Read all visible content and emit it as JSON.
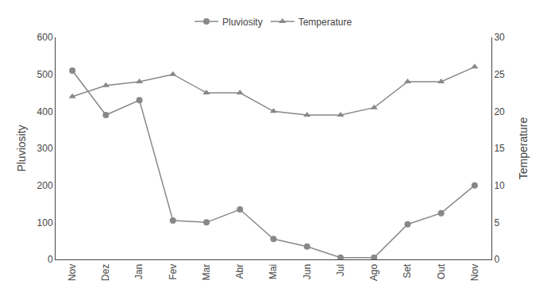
{
  "chart_data": {
    "type": "line",
    "categories": [
      "Nov",
      "Dez",
      "Jan",
      "Fev",
      "Mar",
      "Abr",
      "Mai",
      "Jun",
      "Jul",
      "Ago",
      "Set",
      "Out",
      "Nov"
    ],
    "series": [
      {
        "name": "Pluviosity",
        "color": "#888888",
        "marker": "circle",
        "values": [
          510,
          390,
          430,
          105,
          100,
          135,
          55,
          35,
          5,
          5,
          95,
          125,
          200
        ]
      },
      {
        "name": "Temperature",
        "color": "#888888",
        "marker": "triangle-up",
        "axis": "y2",
        "values": [
          22,
          23.5,
          24,
          25,
          22.5,
          22.5,
          20,
          19.5,
          19.5,
          20.5,
          24,
          24,
          26
        ]
      }
    ],
    "ylabel": "Pluviosity",
    "y2label": "Temperature",
    "ylim": [
      0,
      600
    ],
    "yticks": [
      0,
      100,
      200,
      300,
      400,
      500,
      600
    ],
    "y2lim": [
      0,
      30
    ],
    "y2ticks": [
      0,
      5,
      10,
      15,
      20,
      25,
      30
    ],
    "grid": false,
    "legend": "top"
  }
}
